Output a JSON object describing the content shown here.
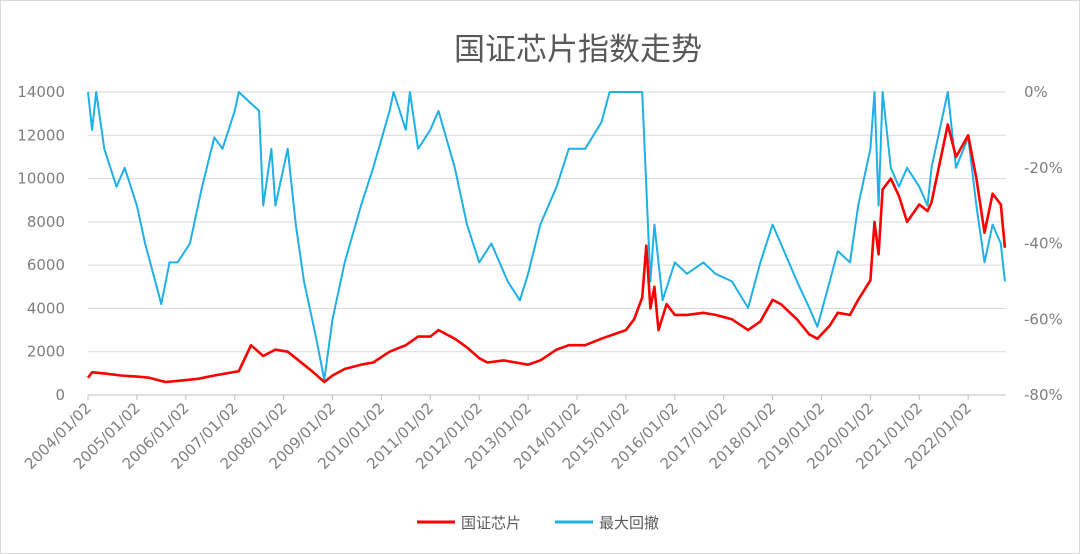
{
  "chart_data": {
    "type": "line",
    "title": "国证芯片指数走势",
    "grid": true,
    "legend_placement": "bottom",
    "x_tick_labels": [
      "2004/01/02",
      "2005/01/02",
      "2006/01/02",
      "2007/01/02",
      "2008/01/02",
      "2009/01/02",
      "2010/01/02",
      "2011/01/02",
      "2012/01/02",
      "2013/01/02",
      "2014/01/02",
      "2015/01/02",
      "2016/01/02",
      "2017/01/02",
      "2018/01/02",
      "2019/01/02",
      "2020/01/02",
      "2021/01/02",
      "2022/01/02"
    ],
    "y_left": {
      "range": [
        0,
        14000
      ],
      "ticks": [
        0,
        2000,
        4000,
        6000,
        8000,
        10000,
        12000,
        14000
      ],
      "tick_labels": [
        "0",
        "2000",
        "4000",
        "6000",
        "8000",
        "10000",
        "12000",
        "14000"
      ]
    },
    "y_right": {
      "range": [
        -80,
        0
      ],
      "ticks": [
        -80,
        -60,
        -40,
        -20,
        0
      ],
      "tick_labels": [
        "-80%",
        "-60%",
        "-40%",
        "-20%",
        "0%"
      ]
    },
    "series": [
      {
        "name": "国证芯片",
        "color": "#ff0000",
        "axis": "left",
        "points": [
          [
            "2004-01",
            800
          ],
          [
            "2004-02",
            1050
          ],
          [
            "2004-05",
            1000
          ],
          [
            "2004-09",
            900
          ],
          [
            "2005-01",
            850
          ],
          [
            "2005-04",
            800
          ],
          [
            "2005-08",
            600
          ],
          [
            "2005-11",
            650
          ],
          [
            "2006-04",
            750
          ],
          [
            "2006-08",
            900
          ],
          [
            "2006-11",
            1000
          ],
          [
            "2007-02",
            1100
          ],
          [
            "2007-05",
            2300
          ],
          [
            "2007-08",
            1800
          ],
          [
            "2007-11",
            2100
          ],
          [
            "2008-02",
            2000
          ],
          [
            "2008-04",
            1700
          ],
          [
            "2008-08",
            1100
          ],
          [
            "2008-11",
            600
          ],
          [
            "2009-01",
            900
          ],
          [
            "2009-04",
            1200
          ],
          [
            "2009-08",
            1400
          ],
          [
            "2009-11",
            1500
          ],
          [
            "2010-03",
            2000
          ],
          [
            "2010-07",
            2300
          ],
          [
            "2010-10",
            2700
          ],
          [
            "2011-01",
            2700
          ],
          [
            "2011-03",
            3000
          ],
          [
            "2011-07",
            2600
          ],
          [
            "2011-10",
            2200
          ],
          [
            "2012-01",
            1700
          ],
          [
            "2012-03",
            1500
          ],
          [
            "2012-07",
            1600
          ],
          [
            "2012-10",
            1500
          ],
          [
            "2013-01",
            1400
          ],
          [
            "2013-04",
            1600
          ],
          [
            "2013-08",
            2100
          ],
          [
            "2013-11",
            2300
          ],
          [
            "2014-03",
            2300
          ],
          [
            "2014-07",
            2600
          ],
          [
            "2014-10",
            2800
          ],
          [
            "2015-01",
            3000
          ],
          [
            "2015-03",
            3500
          ],
          [
            "2015-05",
            4500
          ],
          [
            "2015-06",
            6900
          ],
          [
            "2015-07",
            4000
          ],
          [
            "2015-08",
            5000
          ],
          [
            "2015-09",
            3000
          ],
          [
            "2015-11",
            4200
          ],
          [
            "2016-01",
            3700
          ],
          [
            "2016-04",
            3700
          ],
          [
            "2016-08",
            3800
          ],
          [
            "2016-11",
            3700
          ],
          [
            "2017-03",
            3500
          ],
          [
            "2017-07",
            3000
          ],
          [
            "2017-10",
            3400
          ],
          [
            "2018-01",
            4400
          ],
          [
            "2018-03",
            4200
          ],
          [
            "2018-07",
            3500
          ],
          [
            "2018-10",
            2800
          ],
          [
            "2018-12",
            2600
          ],
          [
            "2019-03",
            3200
          ],
          [
            "2019-05",
            3800
          ],
          [
            "2019-08",
            3700
          ],
          [
            "2019-10",
            4400
          ],
          [
            "2020-01",
            5300
          ],
          [
            "2020-02",
            8000
          ],
          [
            "2020-03",
            6500
          ],
          [
            "2020-04",
            9500
          ],
          [
            "2020-06",
            10000
          ],
          [
            "2020-08",
            9200
          ],
          [
            "2020-10",
            8000
          ],
          [
            "2021-01",
            8800
          ],
          [
            "2021-03",
            8500
          ],
          [
            "2021-04",
            8900
          ],
          [
            "2021-08",
            12500
          ],
          [
            "2021-10",
            11000
          ],
          [
            "2022-01",
            12000
          ],
          [
            "2022-03",
            10000
          ],
          [
            "2022-05",
            7500
          ],
          [
            "2022-07",
            9300
          ],
          [
            "2022-09",
            8800
          ],
          [
            "2022-10",
            6800
          ]
        ]
      },
      {
        "name": "最大回撤",
        "color": "#1eb0e6",
        "axis": "right",
        "points": [
          [
            "2004-01",
            0
          ],
          [
            "2004-02",
            -10
          ],
          [
            "2004-03",
            0
          ],
          [
            "2004-05",
            -15
          ],
          [
            "2004-08",
            -25
          ],
          [
            "2004-10",
            -20
          ],
          [
            "2005-01",
            -30
          ],
          [
            "2005-03",
            -40
          ],
          [
            "2005-05",
            -48
          ],
          [
            "2005-07",
            -56
          ],
          [
            "2005-09",
            -45
          ],
          [
            "2005-11",
            -45
          ],
          [
            "2006-02",
            -40
          ],
          [
            "2006-05",
            -25
          ],
          [
            "2006-08",
            -12
          ],
          [
            "2006-10",
            -15
          ],
          [
            "2007-01",
            -5
          ],
          [
            "2007-02",
            0
          ],
          [
            "2007-07",
            -5
          ],
          [
            "2007-08",
            -30
          ],
          [
            "2007-10",
            -15
          ],
          [
            "2007-11",
            -30
          ],
          [
            "2008-02",
            -15
          ],
          [
            "2008-04",
            -35
          ],
          [
            "2008-06",
            -50
          ],
          [
            "2008-09",
            -65
          ],
          [
            "2008-11",
            -76
          ],
          [
            "2009-01",
            -60
          ],
          [
            "2009-04",
            -45
          ],
          [
            "2009-08",
            -30
          ],
          [
            "2009-11",
            -20
          ],
          [
            "2010-03",
            -5
          ],
          [
            "2010-04",
            0
          ],
          [
            "2010-07",
            -10
          ],
          [
            "2010-08",
            0
          ],
          [
            "2010-10",
            -15
          ],
          [
            "2011-01",
            -10
          ],
          [
            "2011-03",
            -5
          ],
          [
            "2011-07",
            -20
          ],
          [
            "2011-10",
            -35
          ],
          [
            "2012-01",
            -45
          ],
          [
            "2012-04",
            -40
          ],
          [
            "2012-08",
            -50
          ],
          [
            "2012-11",
            -55
          ],
          [
            "2013-01",
            -48
          ],
          [
            "2013-04",
            -35
          ],
          [
            "2013-08",
            -25
          ],
          [
            "2013-11",
            -15
          ],
          [
            "2014-03",
            -15
          ],
          [
            "2014-07",
            -8
          ],
          [
            "2014-09",
            0
          ],
          [
            "2015-05",
            0
          ],
          [
            "2015-07",
            -50
          ],
          [
            "2015-08",
            -35
          ],
          [
            "2015-10",
            -55
          ],
          [
            "2016-01",
            -45
          ],
          [
            "2016-04",
            -48
          ],
          [
            "2016-08",
            -45
          ],
          [
            "2016-11",
            -48
          ],
          [
            "2017-03",
            -50
          ],
          [
            "2017-07",
            -57
          ],
          [
            "2017-10",
            -45
          ],
          [
            "2018-01",
            -35
          ],
          [
            "2018-03",
            -40
          ],
          [
            "2018-07",
            -50
          ],
          [
            "2018-10",
            -57
          ],
          [
            "2018-12",
            -62
          ],
          [
            "2019-03",
            -50
          ],
          [
            "2019-05",
            -42
          ],
          [
            "2019-08",
            -45
          ],
          [
            "2019-10",
            -30
          ],
          [
            "2020-01",
            -15
          ],
          [
            "2020-02",
            0
          ],
          [
            "2020-03",
            -30
          ],
          [
            "2020-04",
            0
          ],
          [
            "2020-06",
            -20
          ],
          [
            "2020-08",
            -25
          ],
          [
            "2020-10",
            -20
          ],
          [
            "2021-01",
            -25
          ],
          [
            "2021-03",
            -30
          ],
          [
            "2021-04",
            -20
          ],
          [
            "2021-08",
            0
          ],
          [
            "2021-10",
            -20
          ],
          [
            "2022-01",
            -12
          ],
          [
            "2022-03",
            -30
          ],
          [
            "2022-05",
            -45
          ],
          [
            "2022-07",
            -35
          ],
          [
            "2022-09",
            -40
          ],
          [
            "2022-10",
            -50
          ]
        ]
      }
    ]
  }
}
